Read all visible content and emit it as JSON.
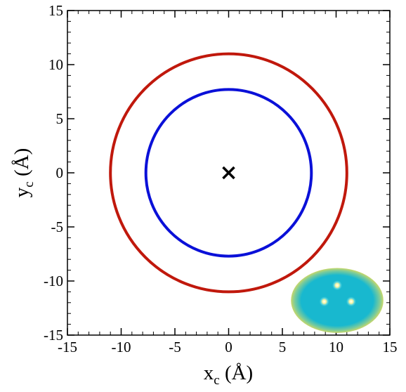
{
  "chart_data": {
    "type": "line",
    "title": "",
    "xlabel": "x",
    "xlabel_subscript": "c",
    "xlabel_unit": " (Å)",
    "ylabel": "y",
    "ylabel_subscript": "c",
    "ylabel_unit": " (Å)",
    "xlim": [
      -15,
      15
    ],
    "ylim": [
      -15,
      15
    ],
    "major_ticks": [
      -15,
      -10,
      -5,
      0,
      5,
      10,
      15
    ],
    "minor_tick_step": 1,
    "grid": false,
    "legend": "none",
    "series": [
      {
        "shape": "circle",
        "center": [
          0,
          0
        ],
        "radius": 11.0,
        "color": "#c0180c"
      },
      {
        "shape": "circle",
        "center": [
          0,
          0
        ],
        "radius": 7.7,
        "color": "#0a10d8"
      }
    ],
    "markers": [
      {
        "symbol": "×",
        "x": 0,
        "y": 0,
        "color": "#000000"
      }
    ],
    "inset": {
      "description": "ellipse density map with three bright points",
      "center": [
        10.1,
        -11.8
      ],
      "semi_axes": [
        4.3,
        3.0
      ],
      "fill_inner": "#18b8cf",
      "fill_edge": "#c9d86a",
      "points": [
        [
          10.1,
          -10.4
        ],
        [
          8.9,
          -11.9
        ],
        [
          11.4,
          -11.9
        ]
      ]
    }
  }
}
